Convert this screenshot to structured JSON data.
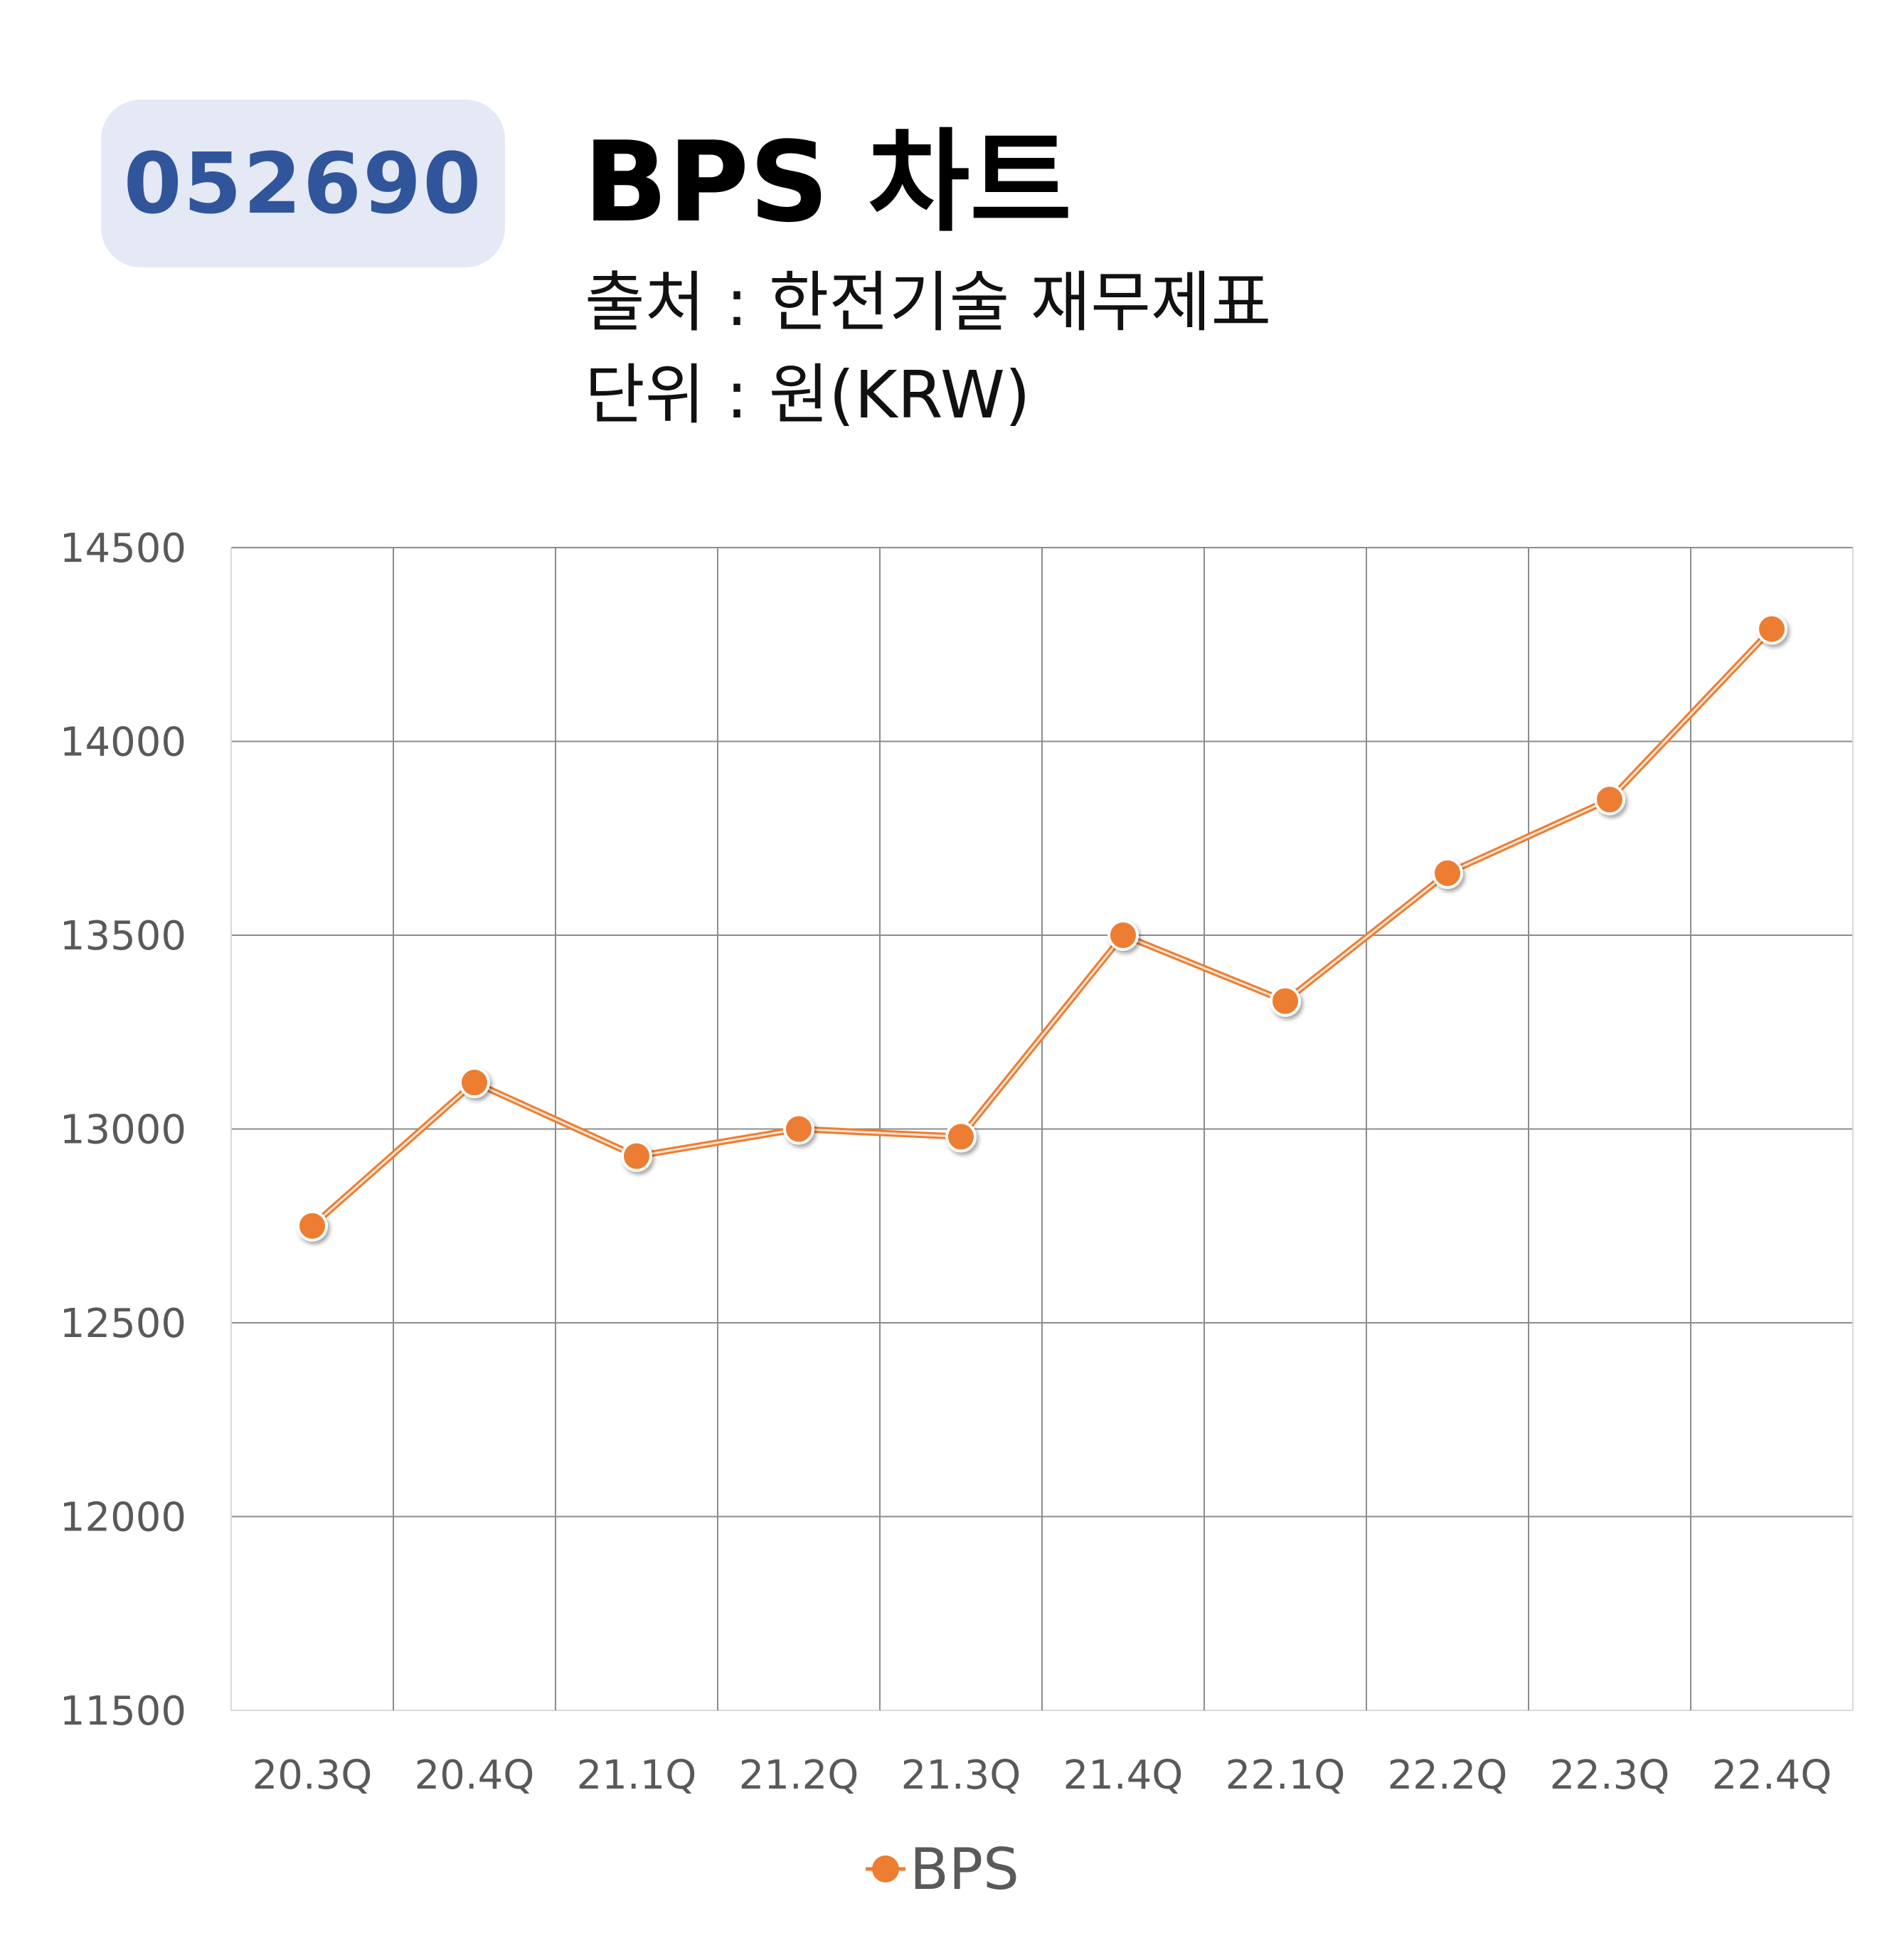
{
  "header": {
    "code": "052690",
    "title": "BPS 차트",
    "source": "출처 : 한전기술 재무제표",
    "unit": "단위 : 원(KRW)"
  },
  "chart_data": {
    "type": "line",
    "categories": [
      "20.3Q",
      "20.4Q",
      "21.1Q",
      "21.2Q",
      "21.3Q",
      "21.4Q",
      "22.1Q",
      "22.2Q",
      "22.3Q",
      "22.4Q"
    ],
    "series": [
      {
        "name": "BPS",
        "values": [
          12750,
          13120,
          12930,
          13000,
          12980,
          13500,
          13330,
          13660,
          13850,
          14290
        ],
        "color": "#ed7d31"
      }
    ],
    "ylim": [
      11500,
      14500
    ],
    "yticks": [
      11500,
      12000,
      12500,
      13000,
      13500,
      14000,
      14500
    ],
    "grid": true,
    "legend": "bottom"
  }
}
